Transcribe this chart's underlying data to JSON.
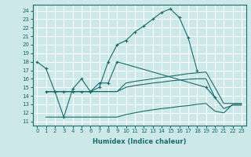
{
  "xlabel": "Humidex (Indice chaleur)",
  "background_color": "#cce8e8",
  "grid_color": "#ffffff",
  "line_color": "#1a6b6b",
  "xlim": [
    -0.5,
    23.5
  ],
  "ylim": [
    10.5,
    24.7
  ],
  "xticks": [
    0,
    1,
    2,
    3,
    4,
    5,
    6,
    7,
    8,
    9,
    10,
    11,
    12,
    13,
    14,
    15,
    16,
    17,
    18,
    19,
    20,
    21,
    22,
    23
  ],
  "yticks": [
    11,
    12,
    13,
    14,
    15,
    16,
    17,
    18,
    19,
    20,
    21,
    22,
    23,
    24
  ],
  "series": [
    {
      "x": [
        0,
        1,
        2,
        3,
        4,
        5,
        6,
        7,
        8,
        9,
        10,
        11,
        12,
        13,
        14,
        15,
        16,
        17,
        18
      ],
      "y": [
        18.0,
        17.2,
        14.5,
        14.5,
        14.5,
        14.5,
        14.5,
        15.0,
        18.0,
        20.0,
        20.5,
        21.5,
        22.2,
        23.0,
        23.8,
        24.2,
        23.2,
        20.8,
        17.0
      ],
      "marker": true
    },
    {
      "x": [
        1,
        2,
        3,
        4,
        5,
        6,
        7,
        8,
        9,
        19,
        20
      ],
      "y": [
        14.5,
        14.5,
        11.5,
        14.8,
        16.0,
        14.5,
        15.5,
        15.5,
        18.0,
        15.0,
        13.8
      ],
      "marker": true
    },
    {
      "x": [
        1,
        2,
        3,
        4,
        5,
        6,
        7,
        8,
        9,
        10,
        11,
        12,
        13,
        14,
        15,
        16,
        17,
        18,
        19,
        20,
        21,
        22,
        23
      ],
      "y": [
        14.5,
        14.5,
        14.5,
        14.5,
        14.5,
        14.5,
        14.5,
        14.5,
        14.5,
        15.5,
        15.7,
        15.85,
        16.0,
        16.15,
        16.3,
        16.45,
        16.6,
        16.7,
        16.8,
        15.0,
        13.1,
        13.1,
        13.1
      ],
      "marker": false
    },
    {
      "x": [
        1,
        2,
        3,
        4,
        5,
        6,
        7,
        8,
        9,
        10,
        11,
        12,
        13,
        14,
        15,
        16,
        17,
        18,
        19,
        20,
        21,
        22,
        23
      ],
      "y": [
        14.5,
        14.5,
        14.5,
        14.5,
        14.5,
        14.5,
        14.5,
        14.5,
        14.5,
        15.0,
        15.2,
        15.35,
        15.5,
        15.6,
        15.75,
        15.85,
        15.95,
        16.0,
        16.0,
        13.8,
        12.5,
        12.9,
        12.9
      ],
      "marker": false
    },
    {
      "x": [
        1,
        2,
        3,
        4,
        5,
        6,
        7,
        8,
        9,
        10,
        11,
        12,
        13,
        14,
        15,
        16,
        17,
        18,
        19,
        20,
        21,
        22,
        23
      ],
      "y": [
        11.5,
        11.5,
        11.5,
        11.5,
        11.5,
        11.5,
        11.5,
        11.5,
        11.5,
        11.8,
        12.0,
        12.2,
        12.35,
        12.5,
        12.6,
        12.75,
        12.85,
        13.0,
        13.1,
        12.2,
        12.0,
        13.0,
        13.0
      ],
      "marker": false
    }
  ]
}
